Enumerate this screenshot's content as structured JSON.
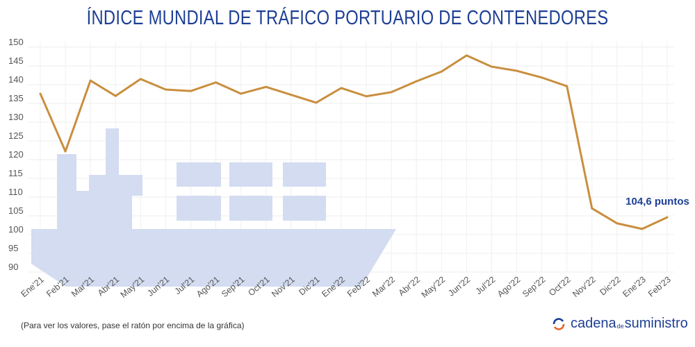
{
  "title": "ÍNDICE MUNDIAL DE TRÁFICO PORTUARIO DE CONTENEDORES",
  "footnote": "(Para ver los valores, pase el ratón por encima de la gráfica)",
  "logo": {
    "part1": "cadena",
    "part2": "de",
    "part3": "suministro",
    "icon": "refresh-arrows-icon"
  },
  "colors": {
    "line": "#c98e3e",
    "title": "#1d3f94",
    "ship": "#d3dcf0",
    "annotation": "#1d3f94"
  },
  "chart_data": {
    "type": "line",
    "title": "ÍNDICE MUNDIAL DE TRÁFICO PORTUARIO DE CONTENEDORES",
    "categories": [
      "Ene'21",
      "Feb'21",
      "Mar'21",
      "Abr'21",
      "May'21",
      "Jun'21",
      "Jul'21",
      "Ago'21",
      "Sep'21",
      "Oct'21",
      "Nov'21",
      "Dic'21",
      "Ene'22",
      "Feb'22",
      "Mar'22",
      "Abr'22",
      "May'22",
      "Jun'22",
      "Jul'22",
      "Ago'22",
      "Sep'22",
      "Oct'22",
      "Nov'22",
      "Dic'22",
      "Ene'23",
      "Feb'23"
    ],
    "values": [
      137.6,
      122.2,
      141.1,
      137.0,
      141.5,
      138.7,
      138.3,
      140.6,
      137.6,
      139.4,
      137.3,
      135.2,
      139.1,
      136.9,
      138.0,
      140.9,
      143.5,
      147.8,
      144.8,
      143.7,
      141.9,
      139.6,
      107.0,
      103.0,
      101.5,
      104.6
    ],
    "ylim": [
      90,
      150
    ],
    "yticks": [
      90,
      95,
      100,
      105,
      110,
      115,
      120,
      125,
      130,
      135,
      140,
      145,
      150
    ],
    "grid": true,
    "annotation": "104,6 puntos"
  }
}
